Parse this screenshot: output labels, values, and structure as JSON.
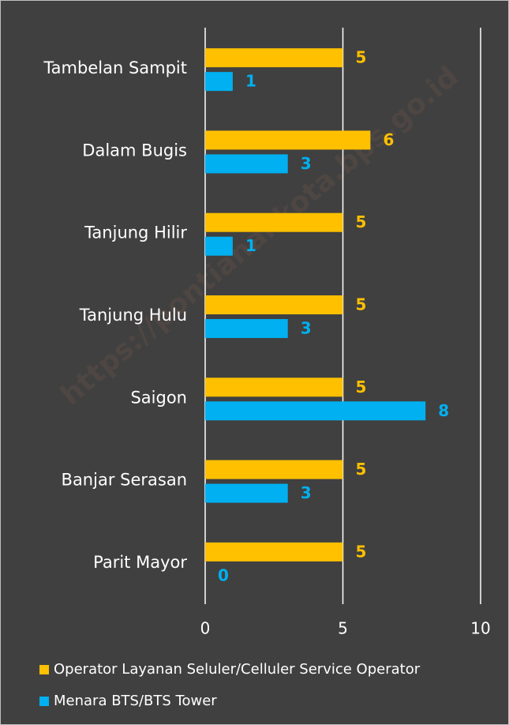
{
  "chart_data": {
    "type": "bar",
    "orientation": "horizontal",
    "watermark": "https://pontianakkota.bps.go.id",
    "categories": [
      "Tambelan Sampit",
      "Dalam Bugis",
      "Tanjung Hilir",
      "Tanjung Hulu",
      "Saigon",
      "Banjar Serasan",
      "Parit Mayor"
    ],
    "series": [
      {
        "name": "Operator Layanan Seluler/Celluler Service Operator",
        "color": "#ffc000",
        "values": [
          5,
          6,
          5,
          5,
          5,
          5,
          5
        ]
      },
      {
        "name": "Menara BTS/BTS Tower",
        "color": "#00b0f0",
        "values": [
          1,
          3,
          1,
          3,
          8,
          3,
          0
        ]
      }
    ],
    "xlim": [
      0,
      10
    ],
    "xticks": [
      0,
      5,
      10
    ],
    "grid": true,
    "legend": "bottom"
  }
}
